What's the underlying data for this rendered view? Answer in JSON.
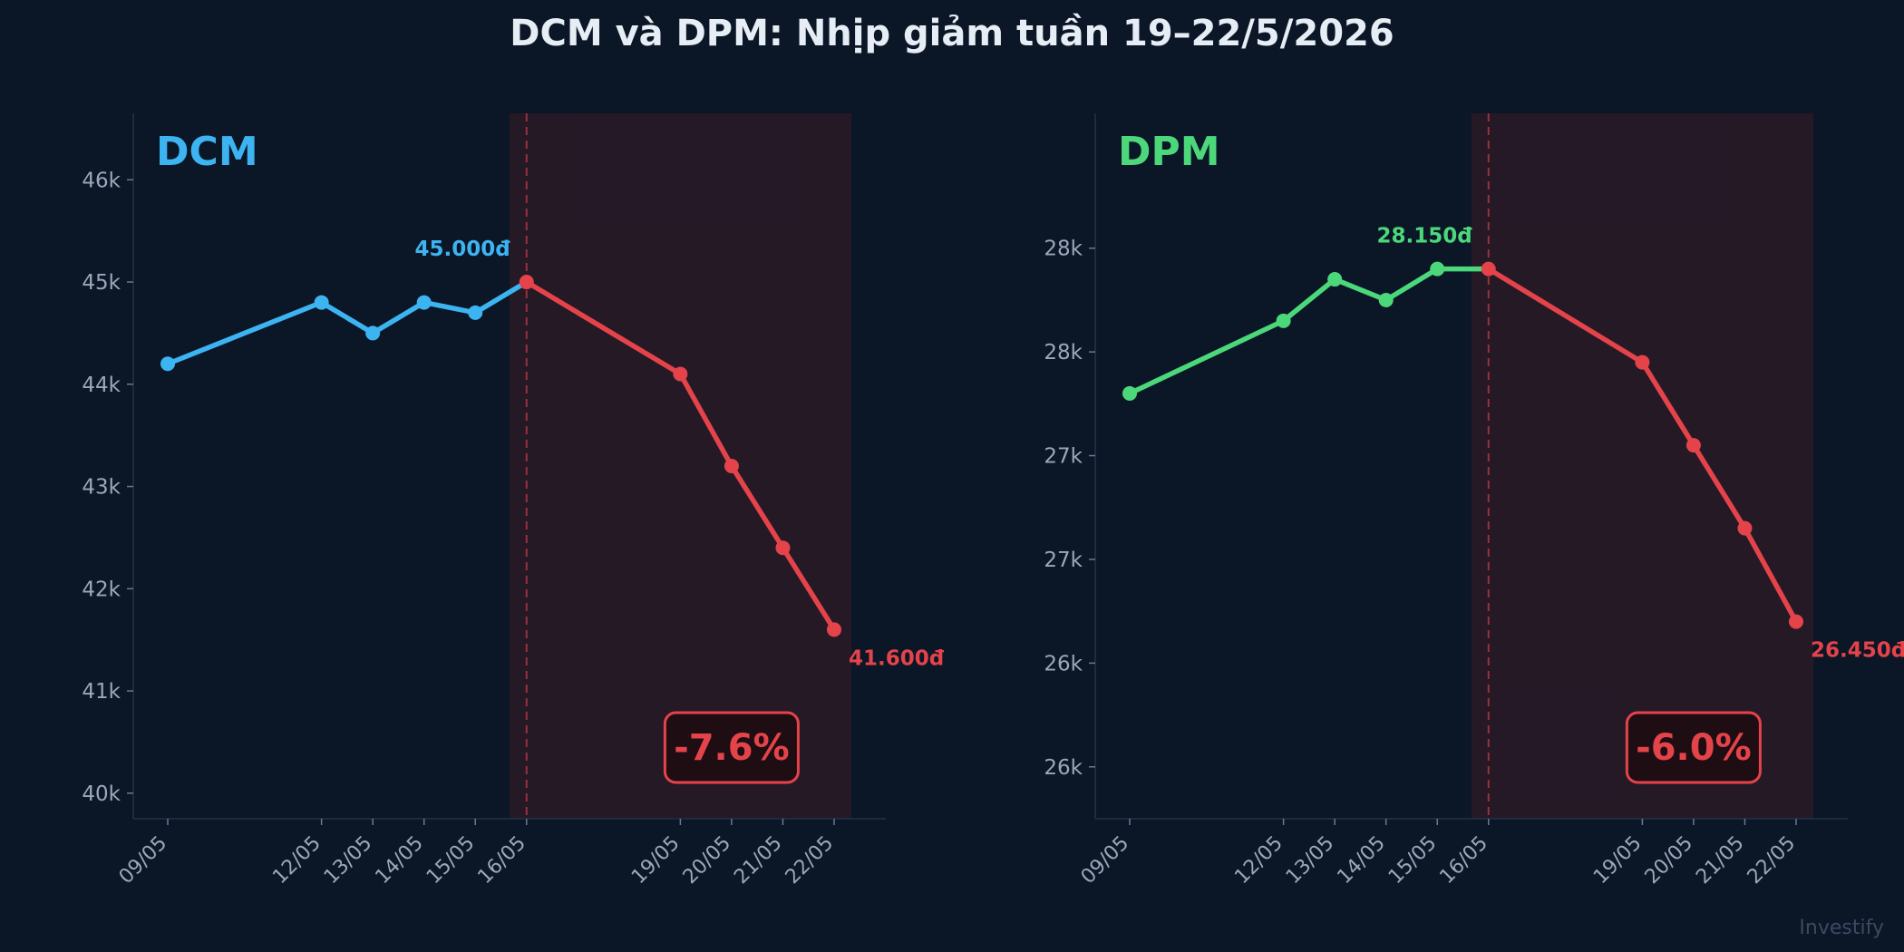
{
  "title": "DCM và DPM: Nhịp giảm tuần 19–22/5/2026",
  "watermark": "Investify",
  "colors": {
    "background": "#0b1626",
    "drop": "#e5434a",
    "axis_text": "#9aa8bb",
    "dcm": "#3db4f2",
    "dpm": "#4cd87a",
    "shade": "#2a1a27",
    "badge_bg": "#1e0d12"
  },
  "chart_data": [
    {
      "type": "line",
      "panel_label": "DCM",
      "color": "#3db4f2",
      "x": [
        "09/05",
        "12/05",
        "13/05",
        "14/05",
        "15/05",
        "16/05",
        "19/05",
        "20/05",
        "21/05",
        "22/05"
      ],
      "y": [
        44200,
        44800,
        44500,
        44800,
        44700,
        45000,
        44100,
        43200,
        42400,
        41600
      ],
      "peak_index": 5,
      "peak_label": "45.000đ",
      "end_label": "41.600đ",
      "change_label": "-7.6%",
      "yticks": [
        40000,
        41000,
        42000,
        43000,
        44000,
        45000,
        46000
      ],
      "ytick_labels": [
        "40k",
        "41k",
        "42k",
        "43k",
        "44k",
        "45k",
        "46k"
      ],
      "ylim": [
        39750,
        46650
      ],
      "shaded_range": [
        "16/05",
        "22/05"
      ],
      "grid": false
    },
    {
      "type": "line",
      "panel_label": "DPM",
      "color": "#4cd87a",
      "x": [
        "09/05",
        "12/05",
        "13/05",
        "14/05",
        "15/05",
        "16/05",
        "19/05",
        "20/05",
        "21/05",
        "22/05"
      ],
      "y": [
        27550,
        27900,
        28100,
        28000,
        28150,
        28150,
        27700,
        27300,
        26900,
        26450
      ],
      "peak_index": 5,
      "peak_label": "28.150đ",
      "end_label": "26.450đ",
      "change_label": "-6.0%",
      "yticks": [
        25750,
        26250,
        26750,
        27250,
        27750,
        28250
      ],
      "ytick_labels": [
        "26k",
        "26k",
        "27k",
        "27k",
        "28k",
        "28k"
      ],
      "ylim": [
        25500,
        28900
      ],
      "shaded_range": [
        "16/05",
        "22/05"
      ],
      "grid": false
    }
  ]
}
